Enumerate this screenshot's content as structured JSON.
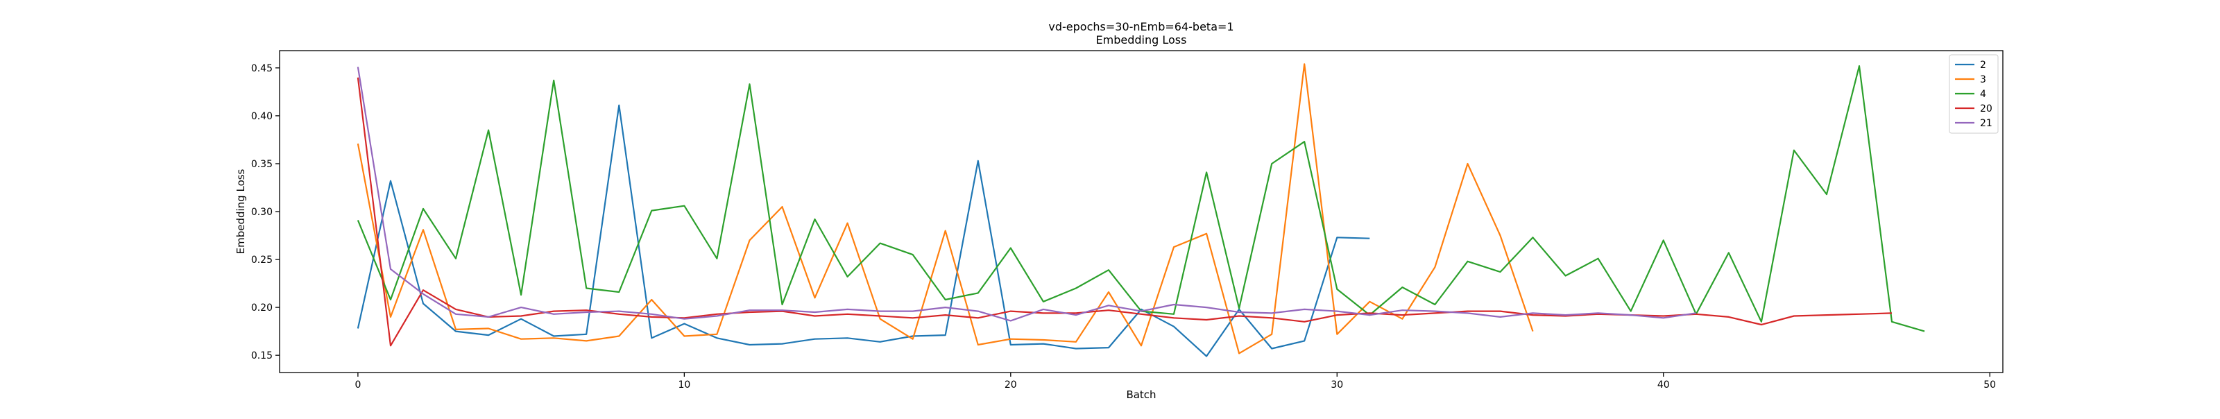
{
  "chart_data": {
    "type": "line",
    "title": "vd-epochs=30-nEmb=64-beta=1",
    "subtitle": "Embedding Loss",
    "xlabel": "Batch",
    "ylabel": "Embedding Loss",
    "xlim": [
      -2.4,
      50.4
    ],
    "ylim": [
      0.132,
      0.468
    ],
    "xticks": [
      0,
      10,
      20,
      30,
      40,
      50
    ],
    "yticks": [
      0.15,
      0.2,
      0.25,
      0.3,
      0.35,
      0.4,
      0.45
    ],
    "ytick_labels": [
      "0.15",
      "0.20",
      "0.25",
      "0.30",
      "0.35",
      "0.40",
      "0.45"
    ],
    "grid": false,
    "legend_position": "top-right",
    "series": [
      {
        "name": "2",
        "color": "#1f77b4",
        "values": [
          0.178,
          0.332,
          0.204,
          0.175,
          0.171,
          0.188,
          0.17,
          0.172,
          0.411,
          0.168,
          0.183,
          0.168,
          0.161,
          0.162,
          0.167,
          0.168,
          0.164,
          0.17,
          0.171,
          0.353,
          0.161,
          0.162,
          0.157,
          0.158,
          0.198,
          0.18,
          0.149,
          0.198,
          0.157,
          0.165,
          0.273,
          0.272
        ]
      },
      {
        "name": "3",
        "color": "#ff7f0e",
        "values": [
          0.371,
          0.19,
          0.281,
          0.177,
          0.178,
          0.167,
          0.168,
          0.165,
          0.17,
          0.208,
          0.17,
          0.172,
          0.27,
          0.305,
          0.21,
          0.288,
          0.188,
          0.167,
          0.28,
          0.161,
          0.167,
          0.166,
          0.164,
          0.216,
          0.16,
          0.263,
          0.277,
          0.152,
          0.172,
          0.454,
          0.172,
          0.206,
          0.188,
          0.242,
          0.35,
          0.275,
          0.175
        ]
      },
      {
        "name": "4",
        "color": "#2ca02c",
        "values": [
          0.291,
          0.208,
          0.303,
          0.251,
          0.385,
          0.213,
          0.437,
          0.22,
          0.216,
          0.301,
          0.306,
          0.251,
          0.433,
          0.203,
          0.292,
          0.232,
          0.267,
          0.255,
          0.208,
          0.215,
          0.262,
          0.206,
          0.22,
          0.239,
          0.196,
          0.193,
          0.341,
          0.199,
          0.35,
          0.373,
          0.219,
          0.192,
          0.221,
          0.203,
          0.248,
          0.237,
          0.273,
          0.233,
          0.251,
          0.196,
          0.27,
          0.193,
          0.257,
          0.185,
          0.364,
          0.318,
          0.452,
          0.185,
          0.175
        ]
      },
      {
        "name": "20",
        "color": "#d62728",
        "values": [
          0.44,
          0.16,
          0.218,
          0.198,
          0.19,
          0.191,
          0.196,
          0.197,
          0.193,
          0.19,
          0.189,
          0.193,
          0.195,
          0.196,
          0.191,
          0.193,
          0.191,
          0.189,
          0.192,
          0.189,
          0.196,
          0.194,
          0.194,
          0.197,
          0.193,
          0.189,
          0.187,
          0.191,
          0.189,
          0.185,
          0.192,
          0.194,
          0.192,
          0.194,
          0.196,
          0.196,
          0.192,
          0.191,
          0.193,
          0.192,
          0.191,
          0.193,
          0.19,
          0.182,
          0.191,
          0.192,
          0.193,
          0.194
        ]
      },
      {
        "name": "21",
        "color": "#9467bd",
        "values": [
          0.451,
          0.24,
          0.214,
          0.193,
          0.19,
          0.2,
          0.193,
          0.195,
          0.196,
          0.193,
          0.188,
          0.191,
          0.197,
          0.197,
          0.195,
          0.198,
          0.196,
          0.196,
          0.2,
          0.196,
          0.186,
          0.198,
          0.192,
          0.202,
          0.196,
          0.203,
          0.2,
          0.195,
          0.194,
          0.198,
          0.196,
          0.192,
          0.197,
          0.196,
          0.194,
          0.19,
          0.194,
          0.192,
          0.194,
          0.192,
          0.189,
          0.194
        ]
      }
    ]
  }
}
